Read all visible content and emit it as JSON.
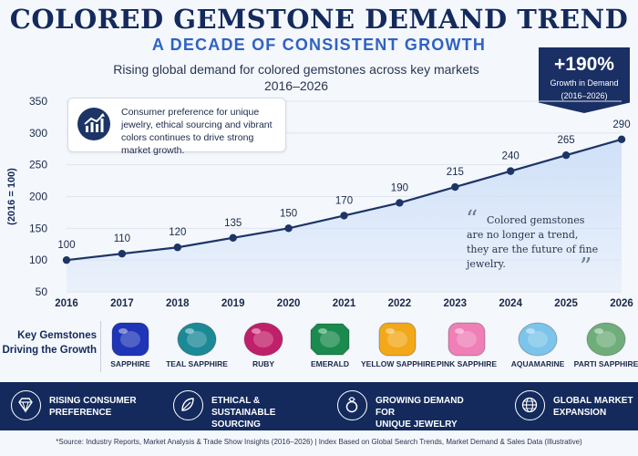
{
  "header": {
    "title": "COLORED GEMSTONE DEMAND TREND",
    "subtitle": "A DECADE OF CONSISTENT GROWTH",
    "description_line1": "Rising global demand for colored gemstones across key markets",
    "description_line2": "2016–2026"
  },
  "badge": {
    "value": "+190%",
    "label_line1": "Growth in Demand",
    "label_line2": "(2016–2026)"
  },
  "insight": {
    "text": "Consumer preference for unique jewelry, ethical sourcing and vibrant colors continues to drive strong market growth."
  },
  "quote": {
    "open": "“",
    "close": "”",
    "text": "Colored gemstones are no longer a trend, they are the future of fine jewelry."
  },
  "chart_data": {
    "type": "area",
    "x": [
      "2016",
      "2017",
      "2018",
      "2019",
      "2020",
      "2021",
      "2022",
      "2023",
      "2024",
      "2025",
      "2026"
    ],
    "values": [
      100,
      110,
      120,
      135,
      150,
      170,
      190,
      215,
      240,
      265,
      290
    ],
    "ylabel": "(2016 = 100)",
    "ylim": [
      50,
      350
    ],
    "yticks": [
      50,
      100,
      150,
      200,
      250,
      300,
      350
    ],
    "data_labels": [
      "100",
      "110",
      "120",
      "135",
      "150",
      "170",
      "190",
      "215",
      "240",
      "265",
      "290"
    ],
    "grid": true,
    "line_color": "#1d3566",
    "fill_color": "#cfe0f8"
  },
  "gemstones": {
    "label_line1": "Key Gemstones",
    "label_line2": "Driving the Growth",
    "items": [
      {
        "name": "SAPPHIRE",
        "color": "#1f35b8",
        "shape": "cushion"
      },
      {
        "name": "TEAL SAPPHIRE",
        "color": "#1c8a96",
        "shape": "oval"
      },
      {
        "name": "RUBY",
        "color": "#c0206a",
        "shape": "oval"
      },
      {
        "name": "EMERALD",
        "color": "#1a8a4e",
        "shape": "octagon"
      },
      {
        "name": "YELLOW SAPPHIRE",
        "color": "#f2a818",
        "shape": "cushion"
      },
      {
        "name": "PINK SAPPHIRE",
        "color": "#ef7fb6",
        "shape": "cushion"
      },
      {
        "name": "AQUAMARINE",
        "color": "#7cc4ea",
        "shape": "oval"
      },
      {
        "name": "PARTI SAPPHIRE",
        "color": "#6fae7a",
        "shape": "oval"
      }
    ]
  },
  "drivers": [
    {
      "line1": "RISING CONSUMER",
      "line2": "PREFERENCE",
      "icon": "diamond-icon"
    },
    {
      "line1": "ETHICAL & SUSTAINABLE",
      "line2": "SOURCING",
      "icon": "leaf-icon"
    },
    {
      "line1": "GROWING DEMAND FOR",
      "line2": "UNIQUE JEWELRY",
      "icon": "ring-icon"
    },
    {
      "line1": "GLOBAL MARKET",
      "line2": "EXPANSION",
      "icon": "globe-icon"
    }
  ],
  "footer": "*Source: Industry Reports, Market Analysis & Trade Show Insights (2016–2026) | Index Based on Global Search Trends, Market Demand & Sales Data (Illustrative)"
}
